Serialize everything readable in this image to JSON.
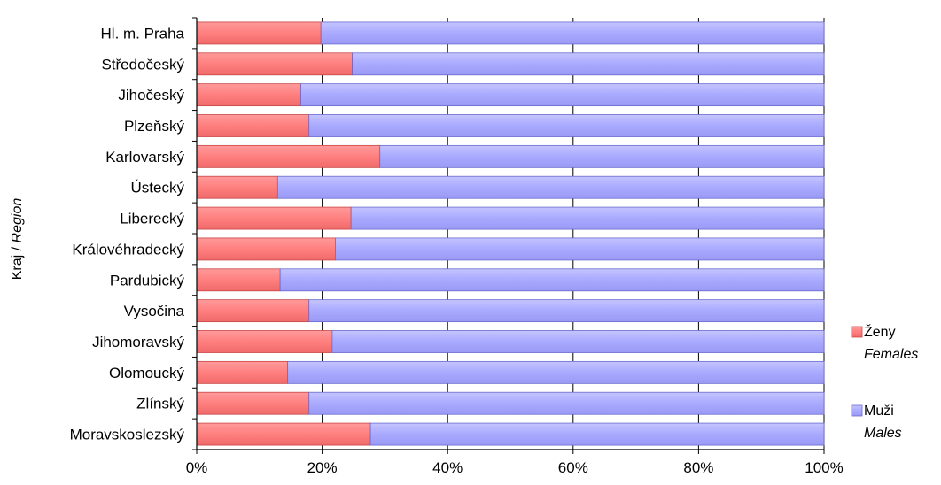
{
  "chart_data": {
    "type": "bar",
    "orientation": "horizontal",
    "stacked": "percent",
    "categories": [
      "Hl. m. Praha",
      "Středočeský",
      "Jihočeský",
      "Plzeňský",
      "Karlovarský",
      "Ústecký",
      "Liberecký",
      "Královéhradecký",
      "Pardubický",
      "Vysočina",
      "Jihomoravský",
      "Olomoucký",
      "Zlínský",
      "Moravskoslezský"
    ],
    "series": [
      {
        "name": "Ženy",
        "name_en": "Females",
        "color": "#ff7f7f",
        "values": [
          19.8,
          24.8,
          16.6,
          17.9,
          29.2,
          12.9,
          24.6,
          22.1,
          13.3,
          17.9,
          21.6,
          14.5,
          17.9,
          27.7
        ]
      },
      {
        "name": "Muži",
        "name_en": "Males",
        "color": "#a9a9ff",
        "values": [
          80.2,
          75.2,
          83.4,
          82.1,
          70.8,
          87.1,
          75.4,
          77.9,
          86.7,
          82.1,
          78.4,
          85.5,
          82.1,
          72.3
        ]
      }
    ],
    "xticks": [
      "0%",
      "20%",
      "40%",
      "60%",
      "80%",
      "100%"
    ],
    "xlim": [
      0,
      100
    ],
    "ylabel": "Kraj",
    "ylabel_en": "Region",
    "grid": "vertical",
    "legend": "right"
  }
}
